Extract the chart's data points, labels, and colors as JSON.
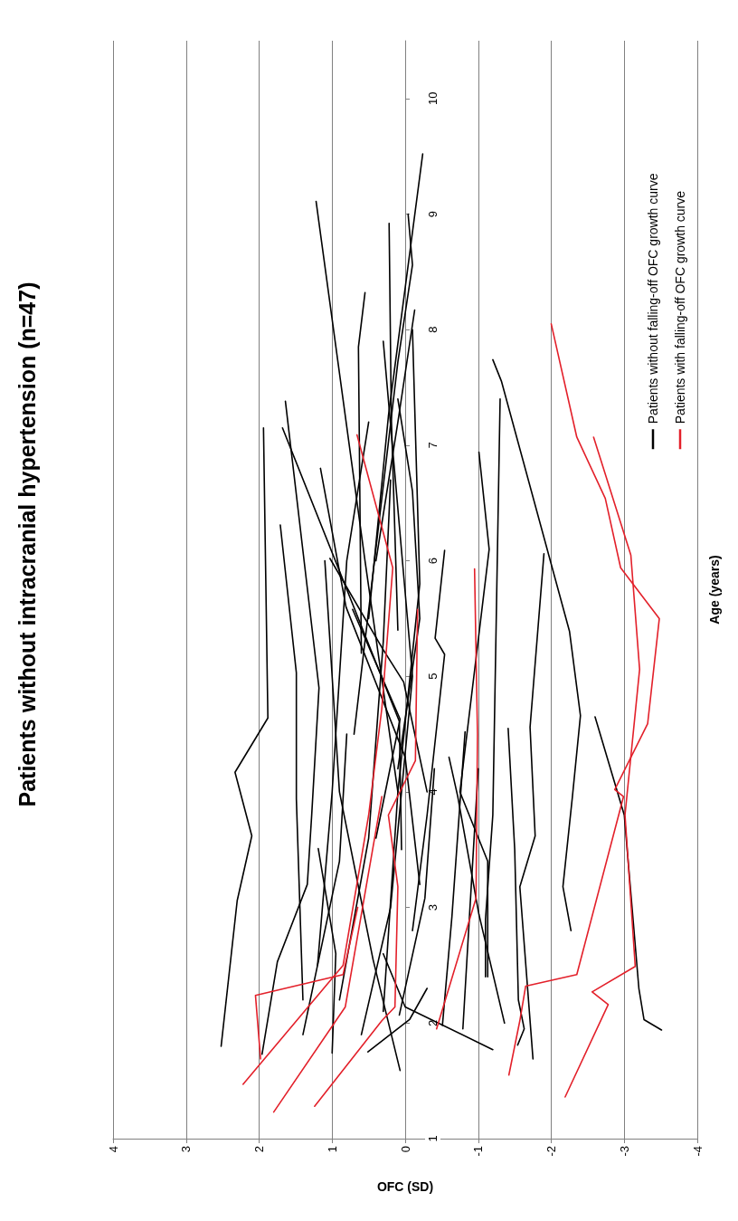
{
  "chart_data": {
    "type": "line",
    "title": "Patients without intracranial hypertension (n=47)",
    "xlabel": "OFC (SD)",
    "ylabel": "Age (years)",
    "xlim": [
      4,
      -4
    ],
    "xticks": [
      4,
      3,
      2,
      1,
      0,
      -1,
      -2,
      -3,
      -4
    ],
    "ylim": [
      1,
      10.5
    ],
    "yticks": [
      1,
      2,
      3,
      4,
      5,
      6,
      7,
      8,
      9,
      10
    ],
    "grid": "x",
    "legend": "top right",
    "marker": "none",
    "line_style": "solid",
    "series": [
      {
        "name": "Patients without falling-off OFC growth curve",
        "color": "#000000",
        "values": [
          4.0,
          6.0,
          9.11
        ],
        "x": [
          0.1,
          0.55,
          1.22
        ]
      },
      {
        "color": "#000000",
        "values": [
          5.2,
          7.85,
          8.32
        ],
        "x": [
          0.6,
          0.64,
          0.55
        ]
      },
      {
        "color": "#000000",
        "values": [
          5.4,
          7.25,
          8.92
        ],
        "x": [
          0.1,
          0.19,
          0.22
        ]
      },
      {
        "color": "#000000",
        "values": [
          4.5,
          7.72,
          8.56,
          9.0
        ],
        "x": [
          0.7,
          0.1,
          -0.1,
          -0.04
        ]
      },
      {
        "color": "#000000",
        "values": [
          5.5,
          7.25,
          9.52
        ],
        "x": [
          0.5,
          0.23,
          -0.24
        ]
      },
      {
        "color": "#000000",
        "values": [
          6.0,
          7.2,
          8.17
        ],
        "x": [
          0.4,
          0.1,
          -0.13
        ]
      },
      {
        "color": "#000000",
        "values": [
          1.8,
          3.06,
          3.62,
          4.17,
          4.64,
          7.15
        ],
        "x": [
          2.52,
          2.3,
          2.1,
          2.33,
          1.88,
          1.94
        ]
      },
      {
        "color": "#000000",
        "values": [
          1.73,
          2.53,
          3.2,
          3.8,
          4.9,
          7.38
        ],
        "x": [
          1.96,
          1.75,
          1.34,
          1.28,
          1.18,
          1.64
        ]
      },
      {
        "color": "#000000",
        "values": [
          2.2,
          3.94,
          5.03,
          6.31
        ],
        "x": [
          1.4,
          1.49,
          1.49,
          1.71
        ]
      },
      {
        "color": "#000000",
        "values": [
          3.5,
          4.61,
          7.15
        ],
        "x": [
          0.05,
          0.08,
          1.68
        ]
      },
      {
        "color": "#000000",
        "values": [
          3.2,
          4.3,
          5.6,
          6.8
        ],
        "x": [
          -0.2,
          0.0,
          0.81,
          1.16
        ]
      },
      {
        "color": "#000000",
        "values": [
          4.0,
          4.95,
          5.24,
          6.02
        ],
        "x": [
          -0.3,
          0.02,
          0.31,
          1.03
        ]
      },
      {
        "color": "#000000",
        "values": [
          3.6,
          4.63,
          5.58
        ],
        "x": [
          0.4,
          0.07,
          0.72
        ]
      },
      {
        "color": "#000000",
        "values": [
          1.9,
          3.4,
          4.5
        ],
        "x": [
          1.4,
          0.9,
          0.8
        ]
      },
      {
        "color": "#000000",
        "values": [
          1.74,
          2.6,
          3.51
        ],
        "x": [
          1.0,
          0.95,
          1.19
        ]
      },
      {
        "color": "#000000",
        "values": [
          1.59,
          2.55,
          4.0,
          6.0
        ],
        "x": [
          0.07,
          0.44,
          0.9,
          1.1
        ]
      },
      {
        "color": "#000000",
        "values": [
          1.75,
          2.03,
          2.3
        ],
        "x": [
          0.51,
          -0.06,
          -0.3
        ]
      },
      {
        "color": "#000000",
        "values": [
          2.07,
          3.08,
          4.2
        ],
        "x": [
          0.08,
          -0.27,
          -0.4
        ]
      },
      {
        "color": "#000000",
        "values": [
          2.2,
          3.6,
          5.3,
          6.7
        ],
        "x": [
          0.9,
          0.5,
          0.3,
          0.2
        ]
      },
      {
        "color": "#000000",
        "values": [
          1.9,
          3.0,
          5.0,
          7.9
        ],
        "x": [
          0.6,
          0.2,
          -0.1,
          0.3
        ]
      },
      {
        "color": "#000000",
        "values": [
          2.1,
          4.0,
          5.8,
          8.0
        ],
        "x": [
          0.3,
          0.1,
          -0.2,
          -0.1
        ]
      },
      {
        "color": "#000000",
        "values": [
          2.8,
          3.8,
          5.19,
          5.33,
          6.09
        ],
        "x": [
          -0.1,
          -0.3,
          -0.54,
          -0.41,
          -0.54
        ]
      },
      {
        "color": "#000000",
        "values": [
          4.2,
          5.5,
          6.6,
          7.4
        ],
        "x": [
          0.1,
          -0.2,
          -0.1,
          0.1
        ]
      },
      {
        "color": "#000000",
        "values": [
          2.5,
          4.0,
          6.0,
          7.2
        ],
        "x": [
          1.2,
          1.0,
          0.8,
          0.5
        ]
      },
      {
        "color": "#000000",
        "values": [
          2.4,
          3.4,
          4.0,
          6.1,
          6.94
        ],
        "x": [
          -1.13,
          -1.13,
          -0.75,
          -1.15,
          -1.01
        ]
      },
      {
        "color": "#000000",
        "values": [
          2.4,
          2.9,
          3.8,
          7.4
        ],
        "x": [
          -1.1,
          -1.1,
          -1.2,
          -1.3
        ]
      },
      {
        "color": "#000000",
        "values": [
          2.8,
          3.18,
          3.96,
          4.66,
          5.39,
          7.55,
          7.74
        ],
        "x": [
          -2.27,
          -2.16,
          -2.29,
          -2.4,
          -2.25,
          -1.32,
          -1.2
        ]
      },
      {
        "color": "#000000",
        "values": [
          1.69,
          3.18,
          3.62,
          4.56,
          6.06
        ],
        "x": [
          -1.75,
          -1.57,
          -1.78,
          -1.71,
          -1.9
        ]
      },
      {
        "color": "#000000",
        "values": [
          1.81,
          1.95,
          2.2,
          3.5,
          4.55
        ],
        "x": [
          -1.54,
          -1.63,
          -1.55,
          -1.5,
          -1.41
        ]
      },
      {
        "color": "#000000",
        "values": [
          1.98,
          2.92,
          4.52
        ],
        "x": [
          -0.51,
          -0.64,
          -0.82
        ]
      },
      {
        "color": "#000000",
        "values": [
          2.0,
          2.94,
          3.96,
          4.3
        ],
        "x": [
          -1.36,
          -1.01,
          -0.72,
          -0.6
        ]
      },
      {
        "color": "#000000",
        "values": [
          1.95,
          2.92,
          4.2
        ],
        "x": [
          -0.79,
          -0.88,
          -1.0
        ]
      },
      {
        "color": "#000000",
        "values": [
          1.77,
          2.14,
          2.6
        ],
        "x": [
          -1.2,
          0.0,
          0.3
        ]
      },
      {
        "color": "#000000",
        "values": [
          1.94,
          2.03,
          2.3,
          3.8,
          4.65
        ],
        "x": [
          -3.51,
          -3.27,
          -3.2,
          -3.0,
          -2.6
        ]
      },
      {
        "name": "Patients with falling-off OFC growth curve",
        "color": "#e3202a",
        "values": [
          1.47,
          2.5,
          3.8,
          4.72,
          5.94,
          7.09
        ],
        "x": [
          2.22,
          0.85,
          0.5,
          0.32,
          0.17,
          0.66
        ]
      },
      {
        "color": "#e3202a",
        "values": [
          1.69,
          2.24,
          2.42,
          3.0
        ],
        "x": [
          1.98,
          2.05,
          0.85,
          0.65
        ]
      },
      {
        "color": "#e3202a",
        "values": [
          1.23,
          2.14,
          3.96
        ],
        "x": [
          1.8,
          0.82,
          0.32
        ]
      },
      {
        "color": "#e3202a",
        "values": [
          1.28,
          2.02,
          2.14,
          3.18,
          3.8,
          4.27,
          5.58
        ],
        "x": [
          1.24,
          0.32,
          0.14,
          0.1,
          0.23,
          -0.14,
          -0.17
        ]
      },
      {
        "color": "#e3202a",
        "values": [
          1.55,
          2.02,
          2.32,
          2.42,
          3.96,
          4.02,
          4.59,
          5.5,
          5.94,
          6.54,
          7.07,
          8.05
        ],
        "x": [
          -1.42,
          -1.57,
          -1.65,
          -2.35,
          -2.99,
          -2.87,
          -3.32,
          -3.48,
          -2.95,
          -2.74,
          -2.35,
          -2.0
        ]
      },
      {
        "color": "#e3202a",
        "values": [
          1.36,
          2.16,
          2.27,
          2.49,
          3.8,
          5.06,
          6.05,
          7.07
        ],
        "x": [
          -2.19,
          -2.78,
          -2.56,
          -3.15,
          -3.01,
          -3.21,
          -3.09,
          -2.58
        ]
      },
      {
        "color": "#e3202a",
        "values": [
          1.95,
          3.08,
          4.5,
          5.93
        ],
        "x": [
          -0.43,
          -0.97,
          -0.99,
          -0.95
        ]
      }
    ]
  }
}
